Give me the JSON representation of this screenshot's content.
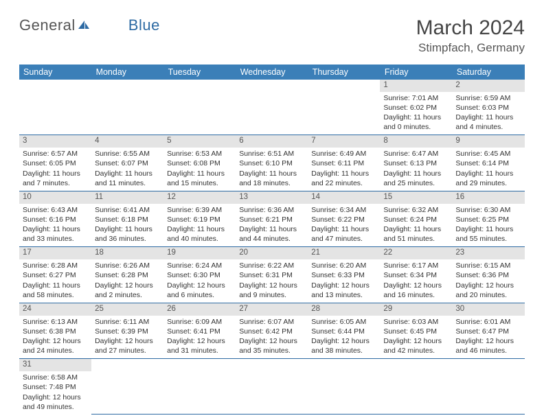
{
  "logo": {
    "text_general": "Genera",
    "text_l": "l",
    "text_blue": "Blue"
  },
  "header": {
    "month": "March 2024",
    "location": "Stimpfach, Germany"
  },
  "weekdays": [
    "Sunday",
    "Monday",
    "Tuesday",
    "Wednesday",
    "Thursday",
    "Friday",
    "Saturday"
  ],
  "colors": {
    "header_bg": "#3b7fb8",
    "header_text": "#ffffff",
    "daynum_bg": "#e4e4e4",
    "cell_border": "#2d6aa3",
    "body_text": "#333333",
    "title_text": "#444444",
    "logo_general": "#555555",
    "logo_blue": "#2d6aa3"
  },
  "cells": [
    [
      {
        "n": "",
        "sr": "",
        "ss": "",
        "dl": ""
      },
      {
        "n": "",
        "sr": "",
        "ss": "",
        "dl": ""
      },
      {
        "n": "",
        "sr": "",
        "ss": "",
        "dl": ""
      },
      {
        "n": "",
        "sr": "",
        "ss": "",
        "dl": ""
      },
      {
        "n": "",
        "sr": "",
        "ss": "",
        "dl": ""
      },
      {
        "n": "1",
        "sr": "Sunrise: 7:01 AM",
        "ss": "Sunset: 6:02 PM",
        "dl": "Daylight: 11 hours and 0 minutes."
      },
      {
        "n": "2",
        "sr": "Sunrise: 6:59 AM",
        "ss": "Sunset: 6:03 PM",
        "dl": "Daylight: 11 hours and 4 minutes."
      }
    ],
    [
      {
        "n": "3",
        "sr": "Sunrise: 6:57 AM",
        "ss": "Sunset: 6:05 PM",
        "dl": "Daylight: 11 hours and 7 minutes."
      },
      {
        "n": "4",
        "sr": "Sunrise: 6:55 AM",
        "ss": "Sunset: 6:07 PM",
        "dl": "Daylight: 11 hours and 11 minutes."
      },
      {
        "n": "5",
        "sr": "Sunrise: 6:53 AM",
        "ss": "Sunset: 6:08 PM",
        "dl": "Daylight: 11 hours and 15 minutes."
      },
      {
        "n": "6",
        "sr": "Sunrise: 6:51 AM",
        "ss": "Sunset: 6:10 PM",
        "dl": "Daylight: 11 hours and 18 minutes."
      },
      {
        "n": "7",
        "sr": "Sunrise: 6:49 AM",
        "ss": "Sunset: 6:11 PM",
        "dl": "Daylight: 11 hours and 22 minutes."
      },
      {
        "n": "8",
        "sr": "Sunrise: 6:47 AM",
        "ss": "Sunset: 6:13 PM",
        "dl": "Daylight: 11 hours and 25 minutes."
      },
      {
        "n": "9",
        "sr": "Sunrise: 6:45 AM",
        "ss": "Sunset: 6:14 PM",
        "dl": "Daylight: 11 hours and 29 minutes."
      }
    ],
    [
      {
        "n": "10",
        "sr": "Sunrise: 6:43 AM",
        "ss": "Sunset: 6:16 PM",
        "dl": "Daylight: 11 hours and 33 minutes."
      },
      {
        "n": "11",
        "sr": "Sunrise: 6:41 AM",
        "ss": "Sunset: 6:18 PM",
        "dl": "Daylight: 11 hours and 36 minutes."
      },
      {
        "n": "12",
        "sr": "Sunrise: 6:39 AM",
        "ss": "Sunset: 6:19 PM",
        "dl": "Daylight: 11 hours and 40 minutes."
      },
      {
        "n": "13",
        "sr": "Sunrise: 6:36 AM",
        "ss": "Sunset: 6:21 PM",
        "dl": "Daylight: 11 hours and 44 minutes."
      },
      {
        "n": "14",
        "sr": "Sunrise: 6:34 AM",
        "ss": "Sunset: 6:22 PM",
        "dl": "Daylight: 11 hours and 47 minutes."
      },
      {
        "n": "15",
        "sr": "Sunrise: 6:32 AM",
        "ss": "Sunset: 6:24 PM",
        "dl": "Daylight: 11 hours and 51 minutes."
      },
      {
        "n": "16",
        "sr": "Sunrise: 6:30 AM",
        "ss": "Sunset: 6:25 PM",
        "dl": "Daylight: 11 hours and 55 minutes."
      }
    ],
    [
      {
        "n": "17",
        "sr": "Sunrise: 6:28 AM",
        "ss": "Sunset: 6:27 PM",
        "dl": "Daylight: 11 hours and 58 minutes."
      },
      {
        "n": "18",
        "sr": "Sunrise: 6:26 AM",
        "ss": "Sunset: 6:28 PM",
        "dl": "Daylight: 12 hours and 2 minutes."
      },
      {
        "n": "19",
        "sr": "Sunrise: 6:24 AM",
        "ss": "Sunset: 6:30 PM",
        "dl": "Daylight: 12 hours and 6 minutes."
      },
      {
        "n": "20",
        "sr": "Sunrise: 6:22 AM",
        "ss": "Sunset: 6:31 PM",
        "dl": "Daylight: 12 hours and 9 minutes."
      },
      {
        "n": "21",
        "sr": "Sunrise: 6:20 AM",
        "ss": "Sunset: 6:33 PM",
        "dl": "Daylight: 12 hours and 13 minutes."
      },
      {
        "n": "22",
        "sr": "Sunrise: 6:17 AM",
        "ss": "Sunset: 6:34 PM",
        "dl": "Daylight: 12 hours and 16 minutes."
      },
      {
        "n": "23",
        "sr": "Sunrise: 6:15 AM",
        "ss": "Sunset: 6:36 PM",
        "dl": "Daylight: 12 hours and 20 minutes."
      }
    ],
    [
      {
        "n": "24",
        "sr": "Sunrise: 6:13 AM",
        "ss": "Sunset: 6:38 PM",
        "dl": "Daylight: 12 hours and 24 minutes."
      },
      {
        "n": "25",
        "sr": "Sunrise: 6:11 AM",
        "ss": "Sunset: 6:39 PM",
        "dl": "Daylight: 12 hours and 27 minutes."
      },
      {
        "n": "26",
        "sr": "Sunrise: 6:09 AM",
        "ss": "Sunset: 6:41 PM",
        "dl": "Daylight: 12 hours and 31 minutes."
      },
      {
        "n": "27",
        "sr": "Sunrise: 6:07 AM",
        "ss": "Sunset: 6:42 PM",
        "dl": "Daylight: 12 hours and 35 minutes."
      },
      {
        "n": "28",
        "sr": "Sunrise: 6:05 AM",
        "ss": "Sunset: 6:44 PM",
        "dl": "Daylight: 12 hours and 38 minutes."
      },
      {
        "n": "29",
        "sr": "Sunrise: 6:03 AM",
        "ss": "Sunset: 6:45 PM",
        "dl": "Daylight: 12 hours and 42 minutes."
      },
      {
        "n": "30",
        "sr": "Sunrise: 6:01 AM",
        "ss": "Sunset: 6:47 PM",
        "dl": "Daylight: 12 hours and 46 minutes."
      }
    ],
    [
      {
        "n": "31",
        "sr": "Sunrise: 6:58 AM",
        "ss": "Sunset: 7:48 PM",
        "dl": "Daylight: 12 hours and 49 minutes."
      },
      {
        "n": "",
        "sr": "",
        "ss": "",
        "dl": ""
      },
      {
        "n": "",
        "sr": "",
        "ss": "",
        "dl": ""
      },
      {
        "n": "",
        "sr": "",
        "ss": "",
        "dl": ""
      },
      {
        "n": "",
        "sr": "",
        "ss": "",
        "dl": ""
      },
      {
        "n": "",
        "sr": "",
        "ss": "",
        "dl": ""
      },
      {
        "n": "",
        "sr": "",
        "ss": "",
        "dl": ""
      }
    ]
  ]
}
